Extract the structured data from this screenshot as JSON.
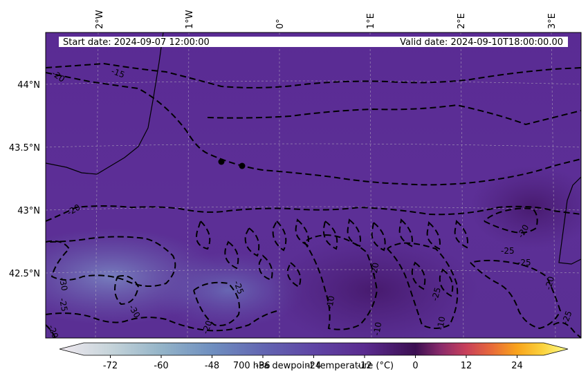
{
  "map": {
    "header": {
      "start_label": "Start date: 2024-09-07 12:00:00",
      "valid_label": "Valid date: 2024-09-10T18:00:00.00"
    },
    "lon_ticks": [
      "2°W",
      "1°W",
      "0°",
      "1°E",
      "2°E",
      "3°E"
    ],
    "lat_ticks": [
      "44°N",
      "43.5°N",
      "43°N",
      "42.5°N"
    ],
    "contour_labels": [
      "-15",
      "-20",
      "-20",
      "-20",
      "-25",
      "-25",
      "-25",
      "-30",
      "-30",
      "-25",
      "-10",
      "-10",
      "-10",
      "-20",
      "-20",
      "-20",
      "-25",
      "-25",
      "-20"
    ],
    "colors": {
      "field_base": "#5a2d91",
      "contour": "#000000",
      "gridline": "#c8c8c8"
    }
  },
  "colorbar": {
    "label": "700 hPa dewpoint temperature (°C)",
    "tick_labels": [
      "-72",
      "-60",
      "-48",
      "-36",
      "-24",
      "-12",
      "0",
      "12",
      "24"
    ],
    "tick_values": [
      -72,
      -60,
      -48,
      -36,
      -24,
      -12,
      0,
      12,
      24
    ],
    "range": [
      -84,
      36
    ],
    "stops": [
      {
        "value": -84,
        "color": "#f0e9f0"
      },
      {
        "value": -72,
        "color": "#c6d4da"
      },
      {
        "value": -60,
        "color": "#94b4c8"
      },
      {
        "value": -48,
        "color": "#6f8fc0"
      },
      {
        "value": -36,
        "color": "#6366b2"
      },
      {
        "value": -24,
        "color": "#5f45a5"
      },
      {
        "value": -12,
        "color": "#5a2b8f"
      },
      {
        "value": 0,
        "color": "#3c0f52"
      },
      {
        "value": 6,
        "color": "#8a2b6b"
      },
      {
        "value": 12,
        "color": "#c8405a"
      },
      {
        "value": 18,
        "color": "#e86a3a"
      },
      {
        "value": 24,
        "color": "#f9a41b"
      },
      {
        "value": 30,
        "color": "#fbd23d"
      },
      {
        "value": 36,
        "color": "#fdfd8a"
      }
    ]
  }
}
